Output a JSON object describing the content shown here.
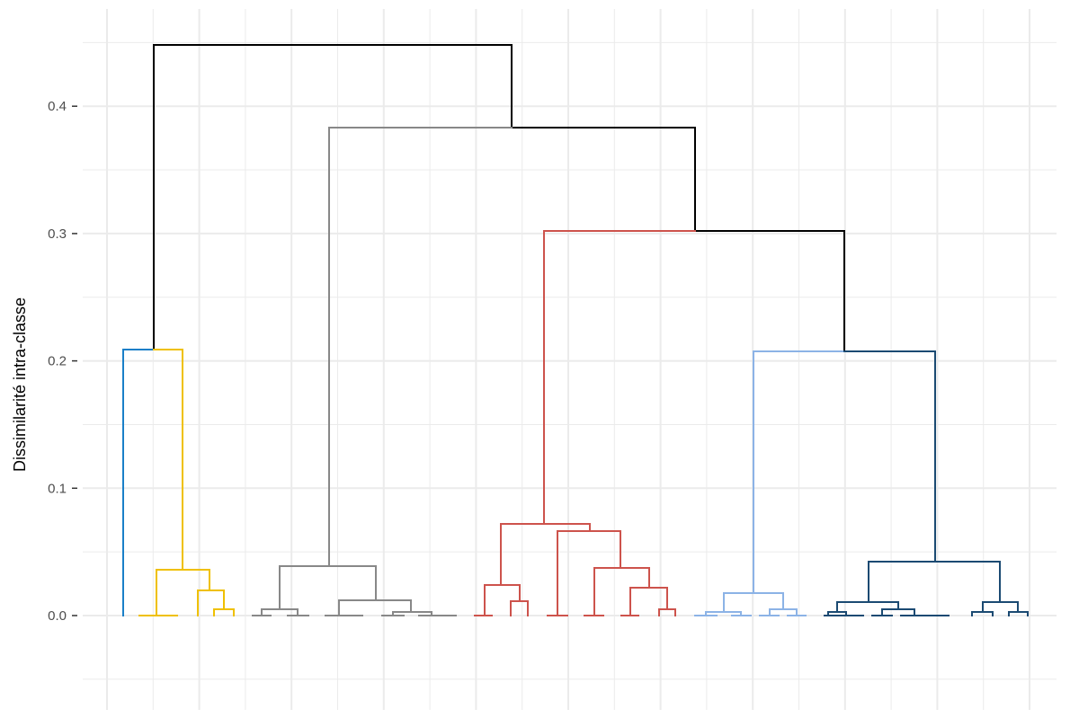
{
  "chart_data": {
    "type": "dendrogram",
    "ylabel": "Dissimilarité intra-classe",
    "xlabel": "",
    "ylim": [
      -0.05,
      0.45
    ],
    "xlim": [
      0,
      50
    ],
    "yticks": [
      0.0,
      0.1,
      0.2,
      0.3,
      0.4
    ],
    "ytick_labels": [
      "0.0",
      "0.1",
      "0.2",
      "0.3",
      "0.4"
    ],
    "grid": true,
    "background": "#ffffff",
    "grid_color": "#ebebeb",
    "colors": {
      "black": "#000000",
      "grey": "#888888",
      "blue": "#1a7fc8",
      "yellow": "#efc000",
      "red": "#cd534c",
      "light_blue": "#8cb3e6",
      "dark_blue": "#1b4a72"
    },
    "merges": [
      {
        "x0": 1.5,
        "x1": 3.5,
        "h": 0.0,
        "color": "yellow"
      },
      {
        "x0": 5.0,
        "x1": 6.0,
        "h": 0.004,
        "color": "yellow"
      },
      {
        "x0": 4.5,
        "x1": 5.5,
        "h": 0.02,
        "color": "yellow"
      },
      {
        "x0": 2.5,
        "x1": 5.0,
        "h": 0.035,
        "color": "yellow"
      },
      {
        "x0": 1.0,
        "x1": 3.75,
        "h": 0.208,
        "color": "yellow"
      },
      {
        "x0": 7.5,
        "x1": 9.5,
        "h": 0.0,
        "color": "grey"
      },
      {
        "x0": 8.0,
        "x1": 9.0,
        "h": 0.005,
        "color": "grey"
      },
      {
        "x0": 11.5,
        "x1": 12.5,
        "h": 0.0,
        "color": "grey"
      },
      {
        "x0": 13.5,
        "x1": 15.5,
        "h": 0.0,
        "color": "grey"
      },
      {
        "x0": 14.0,
        "x1": 15.0,
        "h": 0.003,
        "color": "grey"
      },
      {
        "x0": 12.0,
        "x1": 14.5,
        "h": 0.012,
        "color": "grey"
      },
      {
        "x0": 8.5,
        "x1": 13.25,
        "h": 0.039,
        "color": "grey"
      },
      {
        "x0": 20.0,
        "x1": 20.5,
        "h": 0.0,
        "color": "red"
      },
      {
        "x0": 21.5,
        "x1": 22.5,
        "h": 0.0,
        "color": "red"
      },
      {
        "x0": 20.5,
        "x1": 22.0,
        "h": 0.011,
        "color": "red"
      },
      {
        "x0": 24.5,
        "x1": 25.5,
        "h": 0.0,
        "color": "red"
      },
      {
        "x0": 29.0,
        "x1": 30.0,
        "h": 0.0,
        "color": "red"
      },
      {
        "x0": 31.0,
        "x1": 32.0,
        "h": 0.0,
        "color": "red"
      },
      {
        "x0": 33.0,
        "x1": 34.0,
        "h": 0.005,
        "color": "red"
      },
      {
        "x0": 31.5,
        "x1": 33.5,
        "h": 0.022,
        "color": "red"
      },
      {
        "x0": 29.5,
        "x1": 32.5,
        "h": 0.037,
        "color": "red"
      },
      {
        "x0": 25.0,
        "x1": 31.0,
        "h": 0.066,
        "color": "red"
      },
      {
        "x0": 21.25,
        "x1": 28.0,
        "h": 0.072,
        "color": "red"
      },
      {
        "x0": 36.5,
        "x1": 37.5,
        "h": 0.0,
        "color": "light_blue"
      },
      {
        "x0": 37.0,
        "x1": 38.0,
        "h": 0.003,
        "color": "light_blue"
      },
      {
        "x0": 38.5,
        "x1": 39.5,
        "h": 0.0,
        "color": "light_blue"
      },
      {
        "x0": 40.5,
        "x1": 41.5,
        "h": 0.005,
        "color": "light_blue"
      },
      {
        "x0": 41.0,
        "x1": 42.0,
        "h": 0.0,
        "color": "light_blue"
      },
      {
        "x0": 37.5,
        "x1": 41.0,
        "h": 0.018,
        "color": "light_blue"
      },
      {
        "x0": 43.5,
        "x1": 44.5,
        "h": 0.0,
        "color": "dark_blue"
      },
      {
        "x0": 44.0,
        "x1": 45.0,
        "h": 0.003,
        "color": "dark_blue"
      },
      {
        "x0": 46.5,
        "x1": 47.5,
        "h": 0.0,
        "color": "dark_blue"
      },
      {
        "x0": 47.0,
        "x1": 48.0,
        "h": 0.005,
        "color": "dark_blue"
      },
      {
        "x0": 48.5,
        "x1": 49.5,
        "h": 0.0,
        "color": "dark_blue"
      },
      {
        "x0": 50.5,
        "x1": 51.5,
        "h": 0.0,
        "color": "dark_blue"
      },
      {
        "x0": 44.5,
        "x1": 47.5,
        "h": 0.011,
        "color": "dark_blue"
      },
      {
        "x0": 52.0,
        "x1": 53.0,
        "h": 0.0,
        "color": "dark_blue"
      },
      {
        "x0": 54.0,
        "x1": 55.0,
        "h": 0.003,
        "color": "dark_blue"
      },
      {
        "x0": 53.0,
        "x1": 54.5,
        "h": 0.011,
        "color": "dark_blue"
      },
      {
        "x0": 46.0,
        "x1": 53.75,
        "h": 0.043,
        "color": "dark_blue"
      },
      {
        "x0": 39.25,
        "x1": 49.9,
        "h": 0.207,
        "color": "dark_blue"
      },
      {
        "x0": 10.9,
        "x1": 24.6,
        "h": 0.0,
        "color": "grey"
      }
    ]
  }
}
